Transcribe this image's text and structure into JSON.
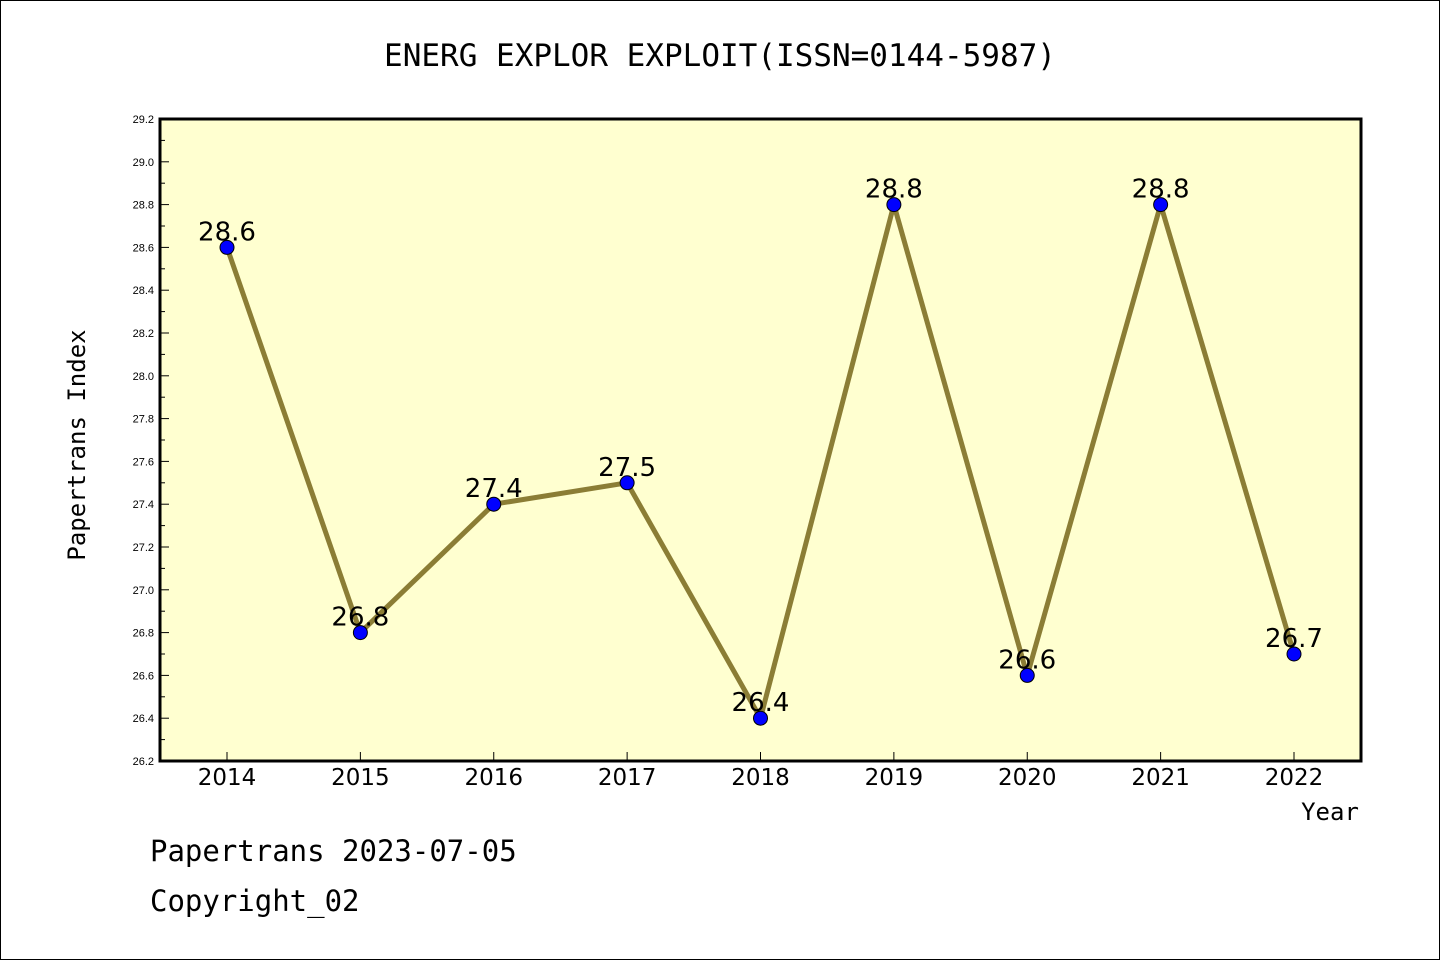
{
  "chart_data": {
    "type": "line",
    "title": "ENERG EXPLOR EXPLOIT(ISSN=0144-5987)",
    "xlabel": "Year",
    "ylabel": "Papertrans Index",
    "categories": [
      "2014",
      "2015",
      "2016",
      "2017",
      "2018",
      "2019",
      "2020",
      "2021",
      "2022"
    ],
    "series": [
      {
        "values": [
          28.6,
          26.8,
          27.4,
          27.5,
          26.4,
          28.8,
          26.6,
          28.8,
          26.7
        ],
        "labels": [
          "28.6",
          "26.8",
          "27.4",
          "27.5",
          "26.4",
          "28.8",
          "26.6",
          "28.8",
          "26.7"
        ]
      }
    ],
    "ylim": [
      26.2,
      29.2
    ],
    "yticks": [
      "26.2",
      "26.4",
      "26.6",
      "26.8",
      "27.0",
      "27.2",
      "27.4",
      "27.6",
      "27.8",
      "28.0",
      "28.2",
      "28.4",
      "28.6",
      "28.8",
      "29.0",
      "29.2"
    ],
    "grid": false,
    "colors": {
      "plot_background": "#ffffd0",
      "line": "#8b7d35",
      "marker": "#0000ff"
    }
  },
  "footer": {
    "line1": "Papertrans 2023-07-05",
    "line2": "Copyright_02"
  }
}
